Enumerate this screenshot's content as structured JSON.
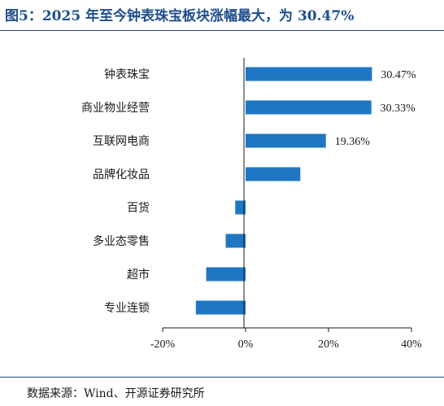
{
  "figure": {
    "title": "图5：2025 年至今钟表珠宝板块涨幅最大，为 30.47%",
    "source": "数据来源：Wind、开源证券研究所"
  },
  "chart_data": {
    "type": "bar",
    "orientation": "horizontal",
    "categories": [
      "钟表珠宝",
      "商业物业经营",
      "互联网电商",
      "品牌化妆品",
      "百货",
      "多业态零售",
      "超市",
      "专业连锁"
    ],
    "values": [
      30.47,
      30.33,
      19.36,
      13.2,
      -2.5,
      -4.8,
      -9.5,
      -12.0
    ],
    "value_labels": [
      "30.47%",
      "30.33%",
      "19.36%",
      "",
      "",
      "",
      "",
      ""
    ],
    "xlim": [
      -20,
      40
    ],
    "xticks": [
      -20,
      0,
      20,
      40
    ],
    "xtick_labels": [
      "-20%",
      "0%",
      "20%",
      "40%"
    ],
    "bar_color": "#1f77c4",
    "grid": false,
    "legend": "none"
  }
}
